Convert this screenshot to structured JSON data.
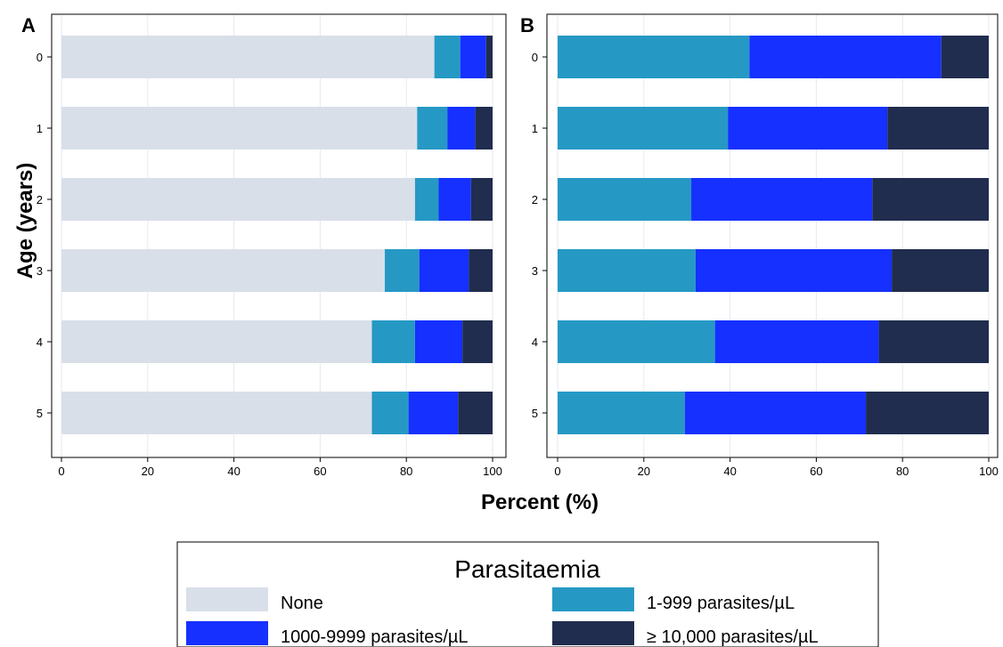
{
  "chart_data": [
    {
      "type": "bar",
      "orientation": "horizontal",
      "stacked": true,
      "title": "A",
      "categories": [
        "0",
        "1",
        "2",
        "3",
        "4",
        "5"
      ],
      "series": [
        {
          "name": "None",
          "values": [
            86.5,
            82.5,
            82.0,
            75.0,
            72.0,
            72.0
          ]
        },
        {
          "name": "1-999 parasites/µL",
          "values": [
            6.0,
            7.0,
            5.5,
            8.0,
            10.0,
            8.5
          ]
        },
        {
          "name": "1000-9999 parasites/µL",
          "values": [
            6.0,
            6.5,
            7.5,
            11.5,
            11.0,
            11.5
          ]
        },
        {
          "name": "≥ 10,000 parasites/µL",
          "values": [
            1.5,
            4.0,
            5.0,
            5.5,
            7.0,
            8.0
          ]
        }
      ],
      "xlim": [
        0,
        100
      ],
      "xticks": [
        "0",
        "20",
        "40",
        "60",
        "80",
        "100"
      ],
      "grid": true
    },
    {
      "type": "bar",
      "orientation": "horizontal",
      "stacked": true,
      "title": "B",
      "categories": [
        "0",
        "1",
        "2",
        "3",
        "4",
        "5"
      ],
      "series": [
        {
          "name": "1-999 parasites/µL",
          "values": [
            44.5,
            39.5,
            31.0,
            32.0,
            36.5,
            29.5
          ]
        },
        {
          "name": "1000-9999 parasites/µL",
          "values": [
            44.5,
            37.0,
            42.0,
            45.5,
            38.0,
            42.0
          ]
        },
        {
          "name": "≥ 10,000 parasites/µL",
          "values": [
            11.0,
            23.5,
            27.0,
            22.5,
            25.5,
            28.5
          ]
        }
      ],
      "xlim": [
        0,
        100
      ],
      "xticks": [
        "0",
        "20",
        "40",
        "60",
        "80",
        "100"
      ],
      "grid": true
    }
  ],
  "shared": {
    "ylabel": "Age (years)",
    "xlabel": "Percent (%)"
  },
  "legend": {
    "title": "Parasitaemia",
    "placement": "bottom",
    "entries": [
      {
        "label": "None",
        "color": "#d9dfe9"
      },
      {
        "label": "1-999 parasites/µL",
        "color": "#2599c4"
      },
      {
        "label": "1000-9999 parasites/µL",
        "color": "#1530ff"
      },
      {
        "label": "≥ 10,000 parasites/µL",
        "color": "#212d4e"
      }
    ]
  },
  "colors": {
    "None": "#d9dfe9",
    "1-999 parasites/µL": "#2599c4",
    "1000-9999 parasites/µL": "#1530ff",
    "≥ 10,000 parasites/µL": "#212d4e"
  }
}
